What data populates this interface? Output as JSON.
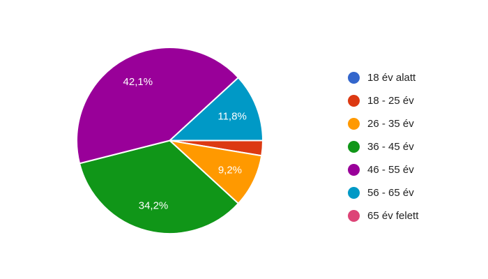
{
  "chart_data": {
    "type": "pie",
    "title": "",
    "legend_position": "right",
    "direction": "clockwise",
    "start_angle": "east",
    "background_color": "#ffffff",
    "slice_label_color": "#ffffff",
    "legend_text_color": "#222222",
    "categories": [
      "18 év alatt",
      "18 - 25 év",
      "26 - 35 év",
      "36 - 45 év",
      "46 - 55 év",
      "56 - 65 év",
      "65 év felett"
    ],
    "values": [
      0,
      2.6,
      9.2,
      34.2,
      42.1,
      11.8,
      0
    ],
    "slice_labels": [
      "",
      "",
      "9,2%",
      "34,2%",
      "42,1%",
      "11,8%",
      ""
    ],
    "colors": [
      "#3366CC",
      "#DC3912",
      "#FF9900",
      "#109618",
      "#990099",
      "#0099C6",
      "#DD4477"
    ]
  }
}
